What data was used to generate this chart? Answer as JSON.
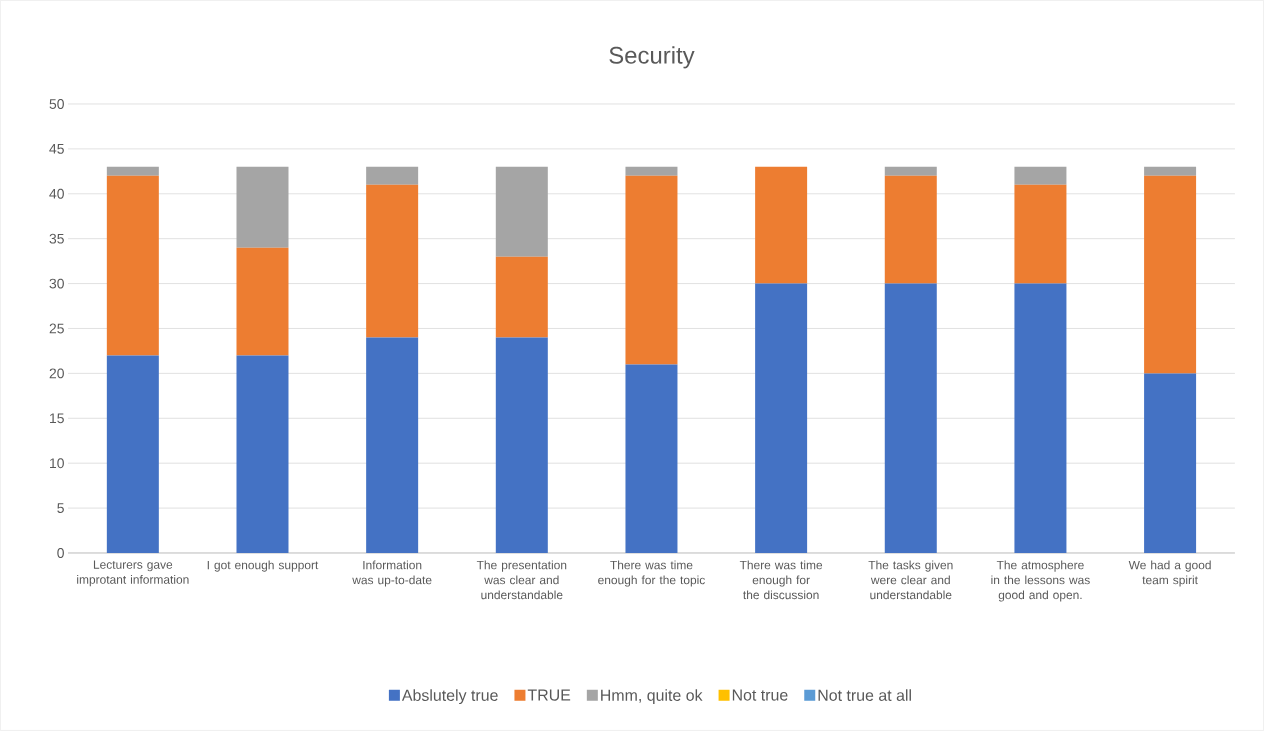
{
  "chart_data": {
    "type": "bar",
    "title": "Security",
    "categories": [
      "Lecturers gave improtant information",
      "I got enough support",
      "Information was up-to-date",
      "The presentation was clear and understandable",
      "There was time enough for the topic",
      "There was time enough for the discussion",
      "The tasks given were clear and understandable",
      "The atmosphere in the lessons was good and open.",
      "We had a good team spirit"
    ],
    "series": [
      {
        "name": "Abslutely true",
        "color": "#4472c4",
        "values": [
          22,
          22,
          24,
          24,
          21,
          30,
          30,
          30,
          20
        ]
      },
      {
        "name": "TRUE",
        "color": "#ed7d31",
        "values": [
          20,
          12,
          17,
          9,
          21,
          13,
          12,
          11,
          22
        ]
      },
      {
        "name": "Hmm, quite ok",
        "color": "#a5a5a5",
        "values": [
          1,
          9,
          2,
          10,
          1,
          0,
          1,
          2,
          1
        ]
      },
      {
        "name": "Not true",
        "color": "#ffc000",
        "values": [
          0,
          0,
          0,
          0,
          0,
          0,
          0,
          0,
          0
        ]
      },
      {
        "name": "Not true at all",
        "color": "#5b9bd5",
        "values": [
          0,
          0,
          0,
          0,
          0,
          0,
          0,
          0,
          0
        ]
      }
    ],
    "stacked": true,
    "ylim": [
      0,
      50
    ],
    "yticks": [
      0,
      5,
      10,
      15,
      20,
      25,
      30,
      35,
      40,
      45,
      50
    ],
    "grid": "y",
    "legend": "bottom"
  }
}
